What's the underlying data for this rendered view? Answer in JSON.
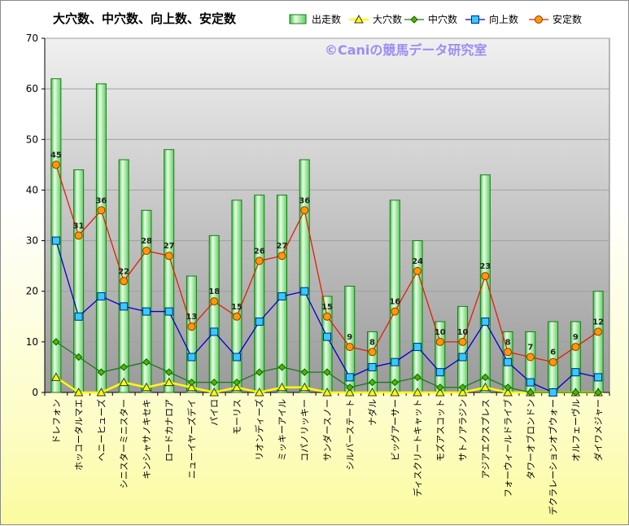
{
  "chart_data": {
    "type": "bar",
    "title": "大穴数、中穴数、向上数、安定数",
    "watermark": "©Caniの競馬データ研究室",
    "ylim": [
      0,
      70
    ],
    "yticks": [
      0,
      10,
      20,
      30,
      40,
      50,
      60,
      70
    ],
    "grid": true,
    "legend": "top-right",
    "categories": [
      "ドレフォン",
      "ホッコータルマエ",
      "ヘニーヒューズ",
      "シニスターミニスター",
      "キンシャサノキセキ",
      "ロードカナロア",
      "ニューイヤーズデイ",
      "パイロ",
      "モーリス",
      "リオンディーズ",
      "ミッキーアイル",
      "コパノリッキー",
      "サンダースノー",
      "シルバーステート",
      "ナダル",
      "ビッグアーサー",
      "ディスクリートキャット",
      "モズアスコット",
      "サトノアラジン",
      "アジアエクスプレス",
      "フォーウィールドライブ",
      "タワーオブロンドン",
      "デクラレーションオブウォー",
      "オルフェーヴル",
      "ダイワメジャー"
    ],
    "series": [
      {
        "name": "出走数",
        "kind": "bar",
        "color": "#7fe07f",
        "values": [
          62,
          44,
          61,
          46,
          36,
          48,
          23,
          31,
          38,
          39,
          39,
          46,
          19,
          21,
          12,
          38,
          30,
          14,
          17,
          43,
          12,
          12,
          14,
          14,
          20
        ]
      },
      {
        "name": "大穴数",
        "kind": "line",
        "color": "#ffff00",
        "marker": "triangle",
        "values": [
          3,
          0,
          0,
          2,
          1,
          2,
          1,
          0,
          1,
          0,
          1,
          1,
          0,
          0,
          0,
          0,
          0,
          0,
          0,
          1,
          0,
          0,
          0,
          0,
          0
        ]
      },
      {
        "name": "中穴数",
        "kind": "line",
        "color": "#1a7a1a",
        "marker": "diamond",
        "values": [
          10,
          7,
          4,
          5,
          6,
          4,
          2,
          2,
          2,
          4,
          5,
          4,
          4,
          1,
          2,
          2,
          3,
          1,
          1,
          3,
          1,
          0,
          0,
          0,
          0
        ]
      },
      {
        "name": "向上数",
        "kind": "line",
        "color": "#0000cc",
        "marker": "square",
        "values": [
          30,
          15,
          19,
          17,
          16,
          16,
          7,
          12,
          7,
          14,
          19,
          20,
          11,
          3,
          5,
          6,
          9,
          4,
          7,
          14,
          6,
          2,
          0,
          4,
          3
        ]
      },
      {
        "name": "安定数",
        "kind": "line",
        "color": "#dd2200",
        "marker": "circle",
        "values": [
          45,
          31,
          36,
          22,
          28,
          27,
          13,
          18,
          15,
          26,
          27,
          36,
          15,
          9,
          8,
          16,
          24,
          10,
          10,
          23,
          8,
          7,
          6,
          9,
          12
        ]
      }
    ]
  }
}
